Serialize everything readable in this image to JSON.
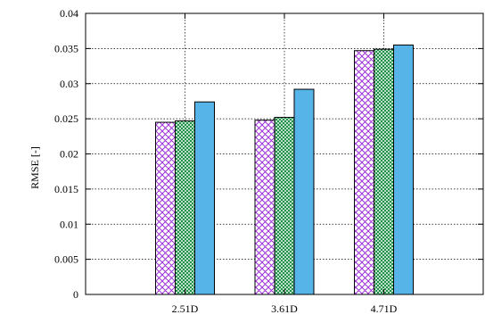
{
  "chart_data": {
    "type": "bar",
    "title": "",
    "xlabel": "",
    "ylabel": "RMSE [-]",
    "ylim": [
      0,
      0.04
    ],
    "yticks": [
      "0",
      "0.005",
      "0.01",
      "0.015",
      "0.02",
      "0.025",
      "0.03",
      "0.035",
      "0.04"
    ],
    "categories": [
      "2.51D",
      "3.61D",
      "4.71D"
    ],
    "grid": true,
    "legend": "none",
    "series": [
      {
        "values": [
          0.0245,
          0.0248,
          0.0347
        ],
        "color": "#9b30d9",
        "pattern": "crosshatch"
      },
      {
        "values": [
          0.0247,
          0.0252,
          0.0349
        ],
        "color": "#0b8a3a",
        "pattern": "fine-crosshatch"
      },
      {
        "values": [
          0.0274,
          0.0292,
          0.0355
        ],
        "color": "#56b4e9",
        "pattern": "solid"
      }
    ]
  }
}
